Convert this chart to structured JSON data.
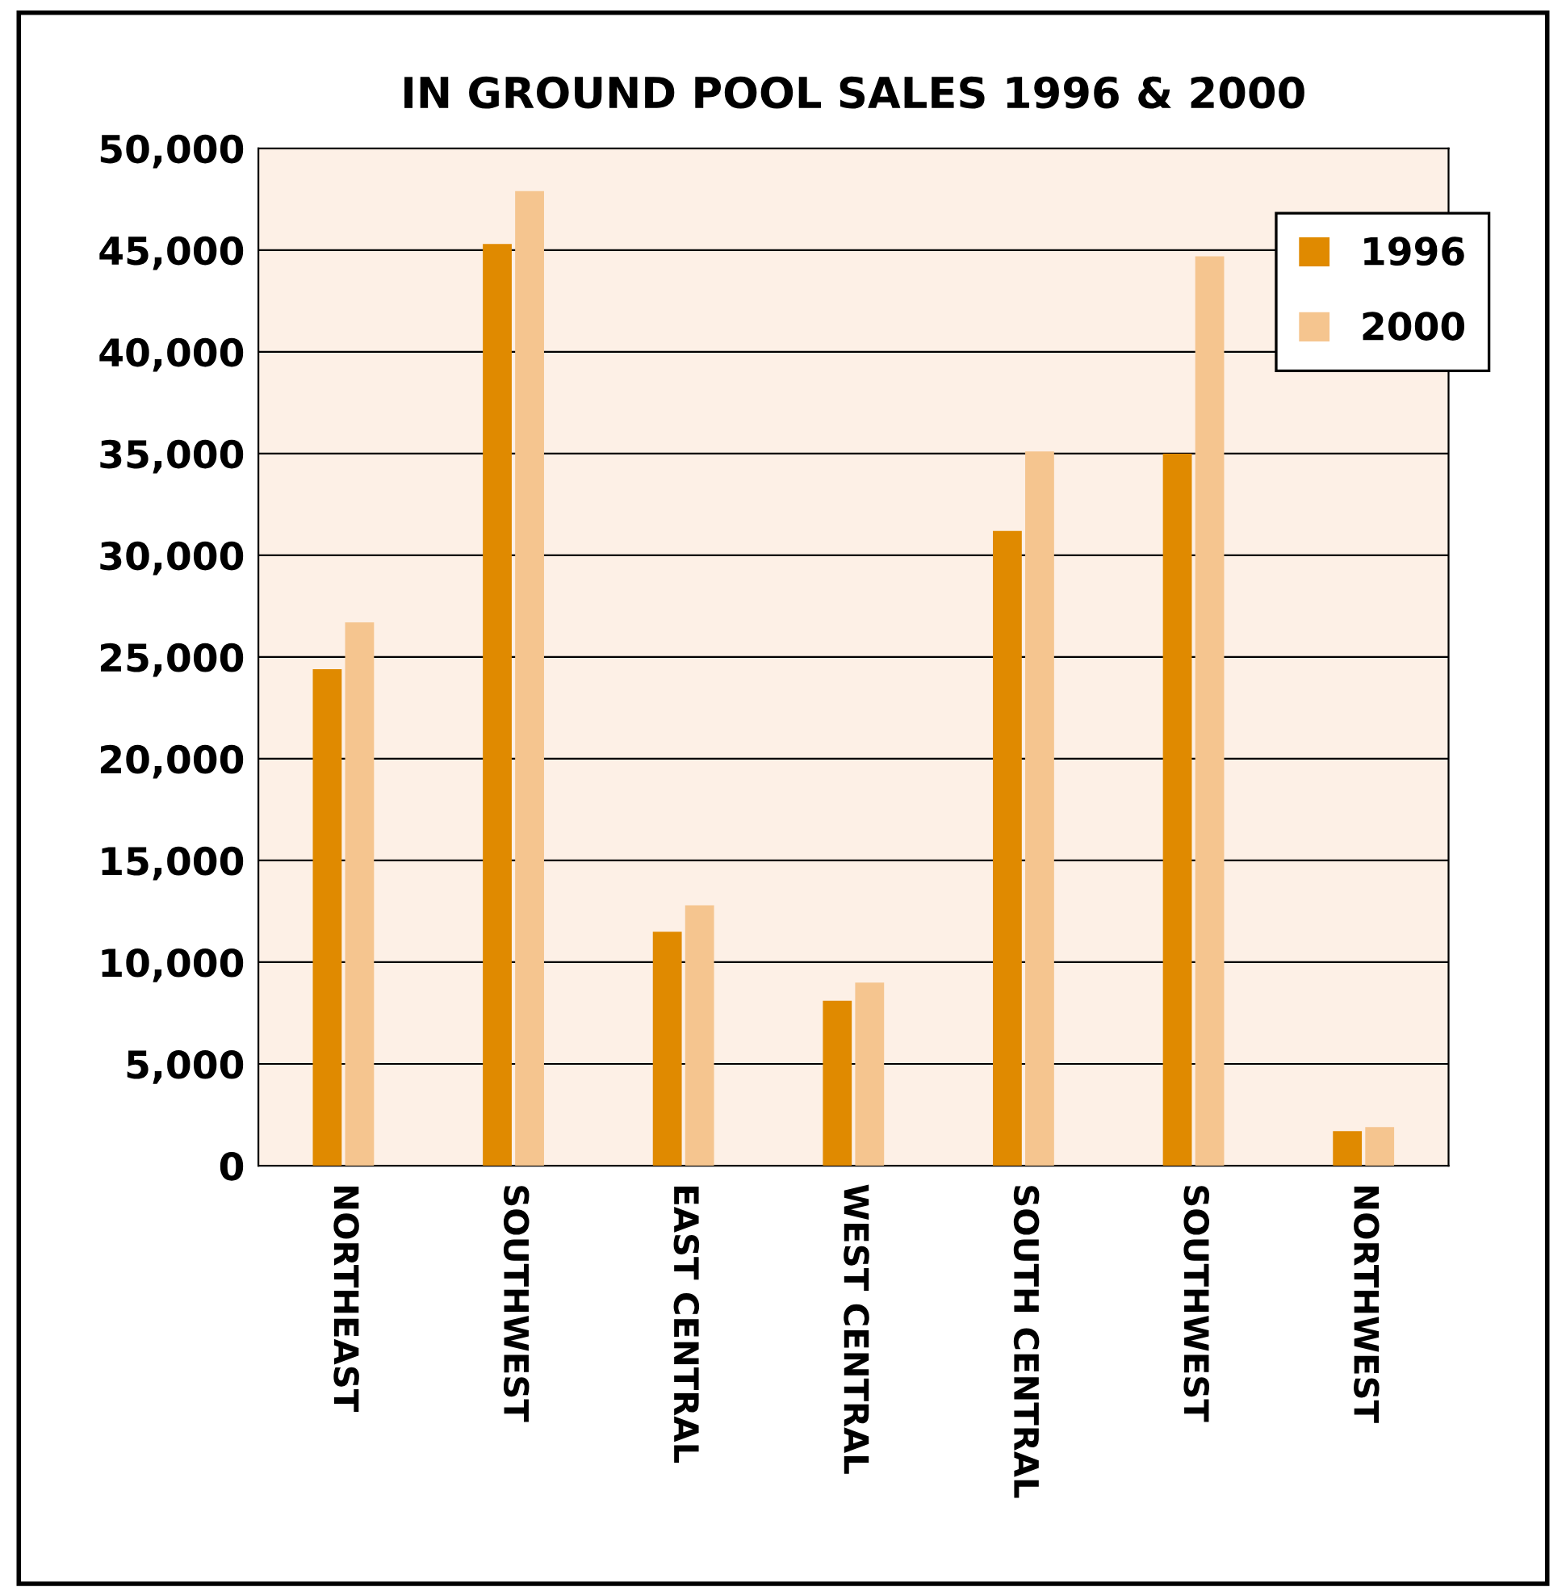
{
  "chart_data": {
    "type": "bar",
    "title": "IN GROUND POOL SALES 1996 & 2000",
    "categories": [
      "NORTHEAST",
      "SOUTHWEST",
      "EAST CENTRAL",
      "WEST CENTRAL",
      "SOUTH CENTRAL",
      "SOUTHWEST",
      "NORTHWEST"
    ],
    "series": [
      {
        "name": "1996",
        "color": "#e08a00",
        "values": [
          24400,
          45300,
          11500,
          8100,
          31200,
          35000,
          1700
        ]
      },
      {
        "name": "2000",
        "color": "#f5c58f",
        "values": [
          26700,
          47900,
          12800,
          9000,
          35100,
          44700,
          1900
        ]
      }
    ],
    "ylim": [
      0,
      50000
    ],
    "yticks": [
      {
        "value": 0,
        "label": "0"
      },
      {
        "value": 5000,
        "label": "5,000"
      },
      {
        "value": 10000,
        "label": "10,000"
      },
      {
        "value": 15000,
        "label": "15,000"
      },
      {
        "value": 20000,
        "label": "20,000"
      },
      {
        "value": 25000,
        "label": "25,000"
      },
      {
        "value": 30000,
        "label": "30,000"
      },
      {
        "value": 35000,
        "label": "35,000"
      },
      {
        "value": 40000,
        "label": "40,000"
      },
      {
        "value": 45000,
        "label": "45,000"
      },
      {
        "value": 50000,
        "label": "50,000"
      }
    ],
    "grid": "y",
    "legend": "top right"
  }
}
